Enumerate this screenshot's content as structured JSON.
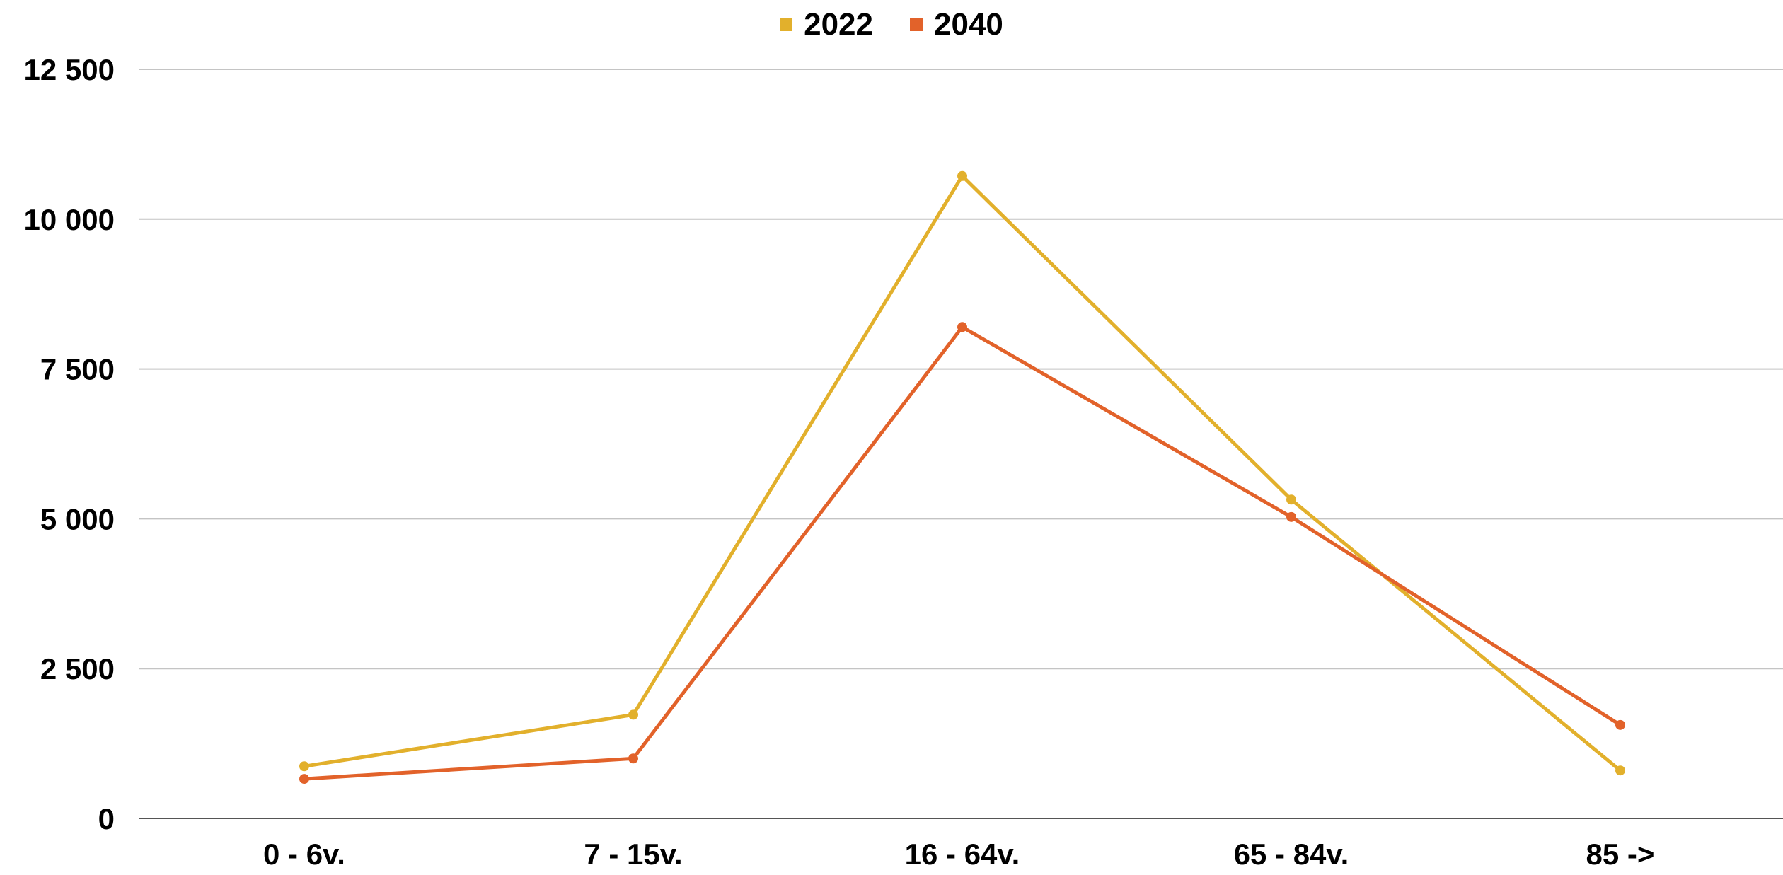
{
  "chart_data": {
    "type": "line",
    "title": "",
    "xlabel": "",
    "ylabel": "",
    "categories": [
      "0 - 6v.",
      "7 - 15v.",
      "16 - 64v.",
      "65 - 84v.",
      "85 ->"
    ],
    "ylim": [
      0,
      12500
    ],
    "yticks": [
      0,
      2500,
      5000,
      7500,
      10000,
      12500
    ],
    "ytick_labels": [
      "0",
      "2 500",
      "5 000",
      "7 500",
      "10 000",
      "12 500"
    ],
    "grid": true,
    "legend_position": "top-center",
    "series": [
      {
        "name": "2022",
        "color": "#E2B02C",
        "values": [
          870,
          1730,
          10720,
          5320,
          800
        ]
      },
      {
        "name": "2040",
        "color": "#E2622A",
        "values": [
          660,
          1000,
          8200,
          5030,
          1560
        ]
      }
    ]
  }
}
